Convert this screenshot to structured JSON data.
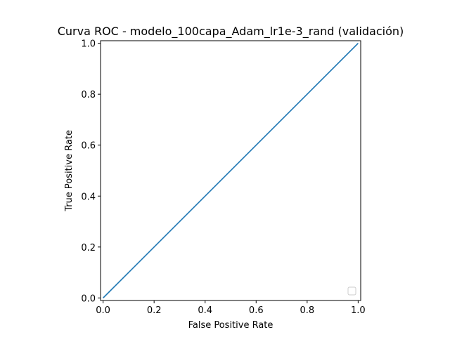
{
  "chart_data": {
    "type": "line",
    "title": "Curva ROC - modelo_100capa_Adam_lr1e-3_rand (validación)",
    "xlabel": "False Positive Rate",
    "ylabel": "True Positive Rate",
    "xlim": [
      -0.01,
      1.01
    ],
    "ylim": [
      -0.01,
      1.01
    ],
    "xticks": [
      "0.0",
      "0.2",
      "0.4",
      "0.6",
      "0.8",
      "1.0"
    ],
    "yticks": [
      "0.0",
      "0.2",
      "0.4",
      "0.6",
      "0.8",
      "1.0"
    ],
    "grid": false,
    "legend": {
      "placement": "lower-right",
      "entries": []
    },
    "series": [
      {
        "x": [
          0.0,
          1.0
        ],
        "y": [
          0.0,
          1.0
        ],
        "color": "#1f77b4"
      }
    ]
  }
}
